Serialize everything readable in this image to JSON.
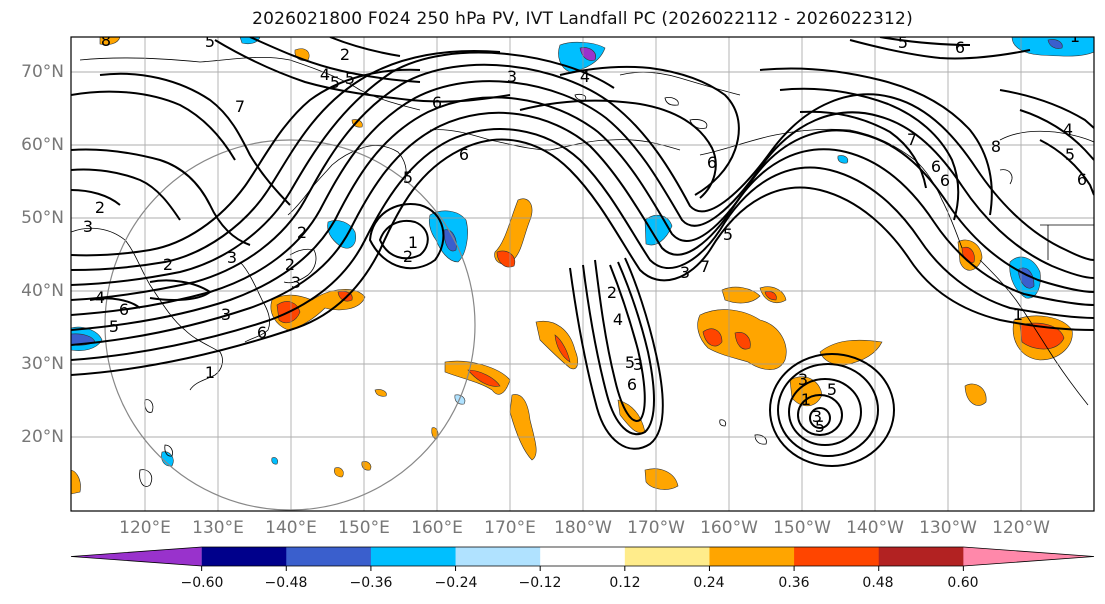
{
  "title": "2026021800 F024 250 hPa PV, IVT Landfall PC (2026022112 - 2026022312)",
  "lat_labels": [
    "70°N",
    "60°N",
    "50°N",
    "40°N",
    "30°N",
    "20°N"
  ],
  "lon_labels": [
    "120°E",
    "130°E",
    "140°E",
    "150°E",
    "160°E",
    "170°E",
    "180°W",
    "170°W",
    "160°W",
    "150°W",
    "140°W",
    "130°W",
    "120°W"
  ],
  "colorbar": {
    "ticks": [
      "−0.60",
      "−0.48",
      "−0.36",
      "−0.24",
      "−0.12",
      "0.12",
      "0.24",
      "0.36",
      "0.48",
      "0.60"
    ],
    "colors": [
      "#9932cc",
      "#00008b",
      "#3a5fcd",
      "#00bfff",
      "#b0e2ff",
      "#ffffff",
      "#ffec8b",
      "#ffa500",
      "#ff4500",
      "#b22222",
      "#ff88aa"
    ]
  },
  "contour_labels": [
    "8",
    "2",
    "4",
    "5",
    "3",
    "5",
    "7",
    "6",
    "4",
    "5",
    "6",
    "2",
    "3",
    "2",
    "4",
    "6",
    "5",
    "3",
    "6",
    "1",
    "1",
    "2",
    "5",
    "6",
    "2",
    "3",
    "7",
    "6",
    "8",
    "6",
    "5",
    "4",
    "7",
    "6",
    "6",
    "5",
    "2",
    "3",
    "1",
    "2",
    "3",
    "3",
    "5",
    "4",
    "6",
    "3",
    "5",
    "1",
    "3",
    "5",
    "1",
    "5"
  ]
}
